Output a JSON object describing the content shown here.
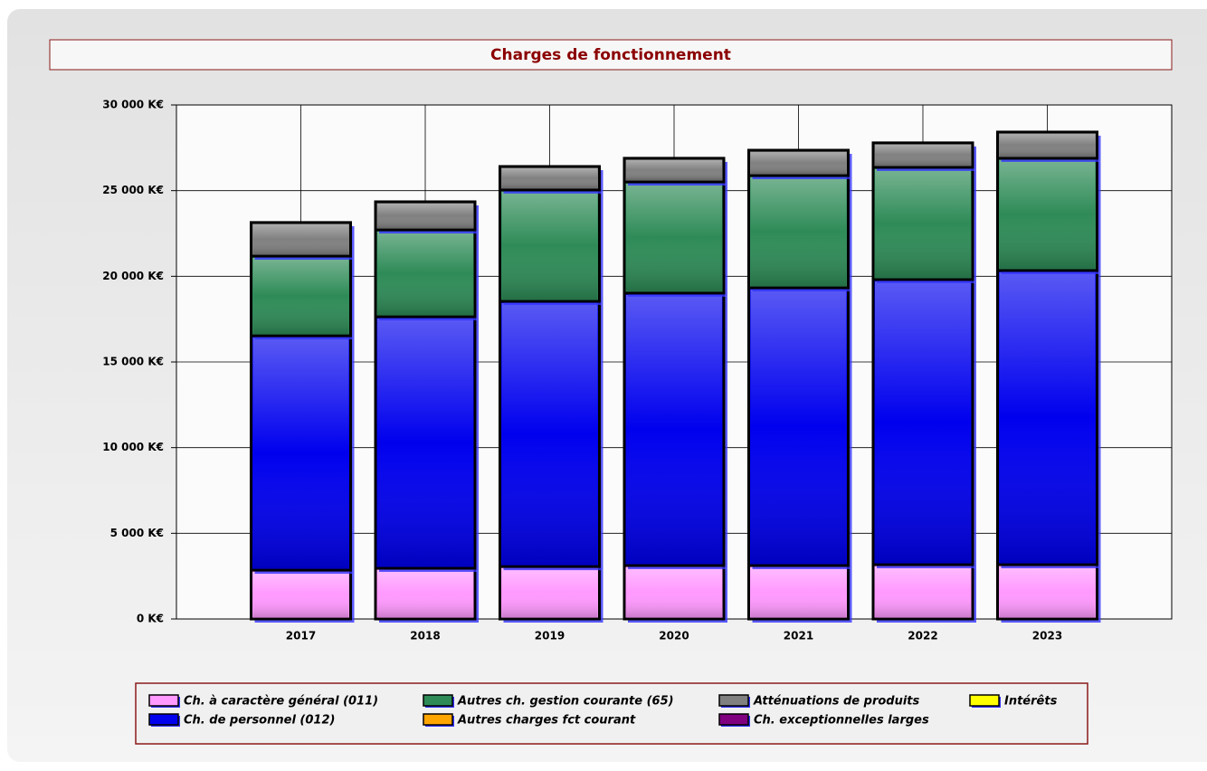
{
  "chart_data": {
    "type": "stacked_bar",
    "title": "Charges de fonctionnement",
    "categories": [
      "2017",
      "2018",
      "2019",
      "2020",
      "2021",
      "2022",
      "2023"
    ],
    "series": [
      {
        "name": "Ch. à caractère général (011)",
        "color": "#ff99ff",
        "values": [
          2850,
          2960,
          3060,
          3120,
          3120,
          3170,
          3170
        ]
      },
      {
        "name": "Ch. de personnel (012)",
        "color": "#0000ee",
        "values": [
          13680,
          14680,
          15480,
          15900,
          16210,
          16640,
          17170
        ]
      },
      {
        "name": "Autres ch. gestion courante (65)",
        "color": "#2e8b57",
        "values": [
          4650,
          5070,
          6500,
          6490,
          6550,
          6550,
          6550
        ]
      },
      {
        "name": "Autres charges fct courant",
        "color": "#ffa500",
        "values": [
          0,
          0,
          0,
          0,
          0,
          0,
          0
        ]
      },
      {
        "name": "Atténuations de produits",
        "color": "#808080",
        "values": [
          1960,
          1640,
          1370,
          1380,
          1480,
          1430,
          1530
        ]
      },
      {
        "name": "Ch. exceptionnelles larges",
        "color": "#800080",
        "values": [
          0,
          0,
          0,
          0,
          0,
          0,
          0
        ]
      },
      {
        "name": "Intérêts",
        "color": "#ffff00",
        "values": [
          0,
          0,
          0,
          0,
          0,
          0,
          0
        ]
      }
    ],
    "ylim": [
      0,
      30000
    ],
    "yticks": [
      {
        "value": 0,
        "label": "0 K€"
      },
      {
        "value": 5000,
        "label": "5 000 K€"
      },
      {
        "value": 10000,
        "label": "10 000 K€"
      },
      {
        "value": 15000,
        "label": "15 000 K€"
      },
      {
        "value": 20000,
        "label": "20 000 K€"
      },
      {
        "value": 25000,
        "label": "25 000 K€"
      },
      {
        "value": 30000,
        "label": "30 000 K€"
      }
    ],
    "grid": true
  }
}
